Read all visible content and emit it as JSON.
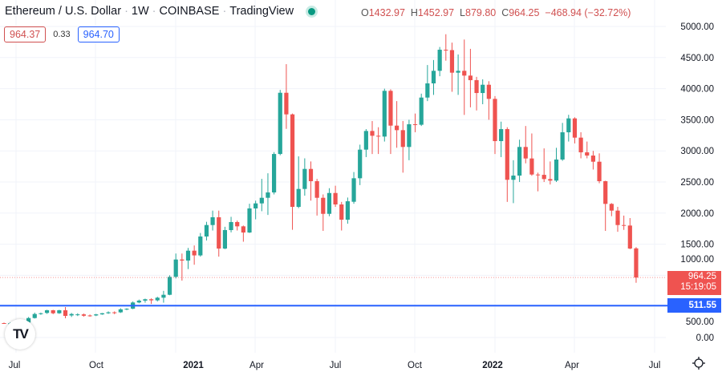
{
  "header": {
    "symbol": "Ethereum / U.S. Dollar",
    "interval": "1W",
    "exchange": "COINBASE",
    "source": "TradingView",
    "sep": "·",
    "status_color": "#089981",
    "ohlc": {
      "o_label": "O",
      "o": "1432.97",
      "h_label": "H",
      "h": "1452.97",
      "l_label": "L",
      "l": "879.80",
      "c_label": "C",
      "c": "964.25",
      "change": "−468.94 (−32.72%)"
    },
    "bid": "964.37",
    "spread": "0.33",
    "ask": "964.70"
  },
  "price_tag": {
    "price": "964.25",
    "countdown": "15:19:05"
  },
  "level_tag": {
    "price": "511.55"
  },
  "logo_text": "TV",
  "colors": {
    "up": "#26a69a",
    "down": "#ef5350",
    "level": "#2962ff",
    "grid": "#f0f3fa"
  },
  "chart_data": {
    "type": "candlestick",
    "title": "Ethereum / U.S. Dollar · 1W · COINBASE",
    "ylim": [
      0,
      5000
    ],
    "y_ticks": [
      "0.00",
      "500.00",
      "1000.00",
      "1500.00",
      "2000.00",
      "2500.00",
      "3000.00",
      "3500.00",
      "4000.00",
      "4500.00",
      "5000.00"
    ],
    "y_tick_values": [
      0,
      500,
      1000,
      1500,
      2000,
      2500,
      3000,
      3500,
      4000,
      4500,
      5000
    ],
    "x_ticks": [
      {
        "label": "Jul",
        "year": false
      },
      {
        "label": "Oct",
        "year": false
      },
      {
        "label": "2021",
        "year": true
      },
      {
        "label": "Apr",
        "year": false
      },
      {
        "label": "Jul",
        "year": false
      },
      {
        "label": "Oct",
        "year": false
      },
      {
        "label": "2022",
        "year": true
      },
      {
        "label": "Apr",
        "year": false
      },
      {
        "label": "Jul",
        "year": false
      }
    ],
    "horizontal_line": 511.55,
    "last_price": 964.25,
    "ohlc_columns": [
      "open",
      "high",
      "low",
      "close"
    ],
    "candles": [
      [
        232,
        240,
        222,
        228
      ],
      [
        228,
        245,
        220,
        229
      ],
      [
        229,
        240,
        222,
        231
      ],
      [
        231,
        242,
        226,
        235
      ],
      [
        241,
        330,
        235,
        313
      ],
      [
        313,
        400,
        305,
        378
      ],
      [
        378,
        400,
        365,
        390
      ],
      [
        395,
        445,
        380,
        438
      ],
      [
        438,
        445,
        375,
        390
      ],
      [
        390,
        445,
        380,
        438
      ],
      [
        438,
        490,
        310,
        348
      ],
      [
        355,
        395,
        330,
        378
      ],
      [
        370,
        390,
        345,
        372
      ],
      [
        372,
        385,
        335,
        350
      ],
      [
        355,
        370,
        335,
        352
      ],
      [
        355,
        380,
        345,
        372
      ],
      [
        372,
        395,
        365,
        390
      ],
      [
        390,
        420,
        380,
        405
      ],
      [
        405,
        420,
        375,
        395
      ],
      [
        405,
        470,
        395,
        453
      ],
      [
        453,
        470,
        440,
        462
      ],
      [
        464,
        580,
        455,
        563
      ],
      [
        563,
        610,
        550,
        593
      ],
      [
        593,
        625,
        560,
        615
      ],
      [
        615,
        630,
        540,
        598
      ],
      [
        598,
        655,
        580,
        640
      ],
      [
        640,
        750,
        560,
        687
      ],
      [
        687,
        1000,
        680,
        975
      ],
      [
        975,
        1350,
        950,
        1254
      ],
      [
        1254,
        1350,
        915,
        1237
      ],
      [
        1237,
        1440,
        1100,
        1396
      ],
      [
        1396,
        1480,
        1170,
        1320
      ],
      [
        1320,
        1680,
        1300,
        1624
      ],
      [
        1624,
        1860,
        1560,
        1808
      ],
      [
        1808,
        2040,
        1720,
        1933
      ],
      [
        1933,
        2040,
        1300,
        1430
      ],
      [
        1430,
        1780,
        1420,
        1727
      ],
      [
        1727,
        1940,
        1690,
        1856
      ],
      [
        1856,
        1880,
        1720,
        1787
      ],
      [
        1787,
        1800,
        1540,
        1688
      ],
      [
        1688,
        2150,
        1680,
        2075
      ],
      [
        2075,
        2200,
        1900,
        2156
      ],
      [
        2156,
        2550,
        2030,
        2246
      ],
      [
        2246,
        2640,
        1970,
        2332
      ],
      [
        2332,
        2980,
        2300,
        2950
      ],
      [
        2950,
        3980,
        2930,
        3934
      ],
      [
        3934,
        4394,
        3354,
        3587
      ],
      [
        3587,
        3600,
        1731,
        2100
      ],
      [
        2100,
        2912,
        2080,
        2388
      ],
      [
        2388,
        2880,
        2280,
        2710
      ],
      [
        2710,
        2830,
        2200,
        2513
      ],
      [
        2513,
        2550,
        1960,
        2246
      ],
      [
        2246,
        2300,
        1714,
        1988
      ],
      [
        1988,
        2400,
        1950,
        2323
      ],
      [
        2323,
        2440,
        2100,
        2139
      ],
      [
        2139,
        2180,
        1720,
        1894
      ],
      [
        1894,
        2250,
        1830,
        2190
      ],
      [
        2182,
        2660,
        2150,
        2560
      ],
      [
        2560,
        3100,
        2450,
        3020
      ],
      [
        3020,
        3350,
        2900,
        3320
      ],
      [
        3320,
        3480,
        2950,
        3243
      ],
      [
        3243,
        3380,
        2950,
        3230
      ],
      [
        3230,
        4000,
        3150,
        3965
      ],
      [
        3965,
        3990,
        2950,
        3406
      ],
      [
        3406,
        3800,
        3050,
        3333
      ],
      [
        3333,
        3480,
        2650,
        3063
      ],
      [
        3063,
        3500,
        2850,
        3428
      ],
      [
        3428,
        3600,
        3300,
        3420
      ],
      [
        3420,
        3920,
        3400,
        3857
      ],
      [
        3857,
        4380,
        3800,
        4085
      ],
      [
        4085,
        4460,
        3900,
        4287
      ],
      [
        4287,
        4670,
        4200,
        4626
      ],
      [
        4626,
        4875,
        4450,
        4620
      ],
      [
        4620,
        4740,
        3950,
        4257
      ],
      [
        4257,
        4550,
        3900,
        4287
      ],
      [
        4287,
        4790,
        3578,
        4210
      ],
      [
        4210,
        4640,
        3700,
        4137
      ],
      [
        4137,
        4190,
        3650,
        3930
      ],
      [
        3930,
        4150,
        3750,
        4063
      ],
      [
        4063,
        4120,
        3500,
        3836
      ],
      [
        3836,
        3880,
        2950,
        3157
      ],
      [
        3157,
        3470,
        2900,
        3350
      ],
      [
        3350,
        3380,
        2180,
        2535
      ],
      [
        2535,
        2850,
        2160,
        2603
      ],
      [
        2603,
        3180,
        2500,
        3063
      ],
      [
        3063,
        3400,
        2800,
        2878
      ],
      [
        2878,
        3280,
        2600,
        2620
      ],
      [
        2620,
        2650,
        2350,
        2615
      ],
      [
        2615,
        3040,
        2500,
        2547
      ],
      [
        2547,
        2830,
        2460,
        2522
      ],
      [
        2522,
        3050,
        2500,
        2861
      ],
      [
        2861,
        3450,
        2840,
        3299
      ],
      [
        3299,
        3580,
        3150,
        3522
      ],
      [
        3522,
        3540,
        3120,
        3213
      ],
      [
        3213,
        3300,
        2880,
        2977
      ],
      [
        2977,
        3150,
        2880,
        2925
      ],
      [
        2925,
        3000,
        2700,
        2826
      ],
      [
        2826,
        2960,
        2480,
        2513
      ],
      [
        2513,
        2520,
        1714,
        2148
      ],
      [
        2148,
        2160,
        1950,
        2040
      ],
      [
        2040,
        2100,
        1700,
        1808
      ],
      [
        1808,
        1960,
        1730,
        1800
      ],
      [
        1800,
        1920,
        1420,
        1430
      ],
      [
        1432.97,
        1452.97,
        879.8,
        964.25
      ]
    ]
  }
}
